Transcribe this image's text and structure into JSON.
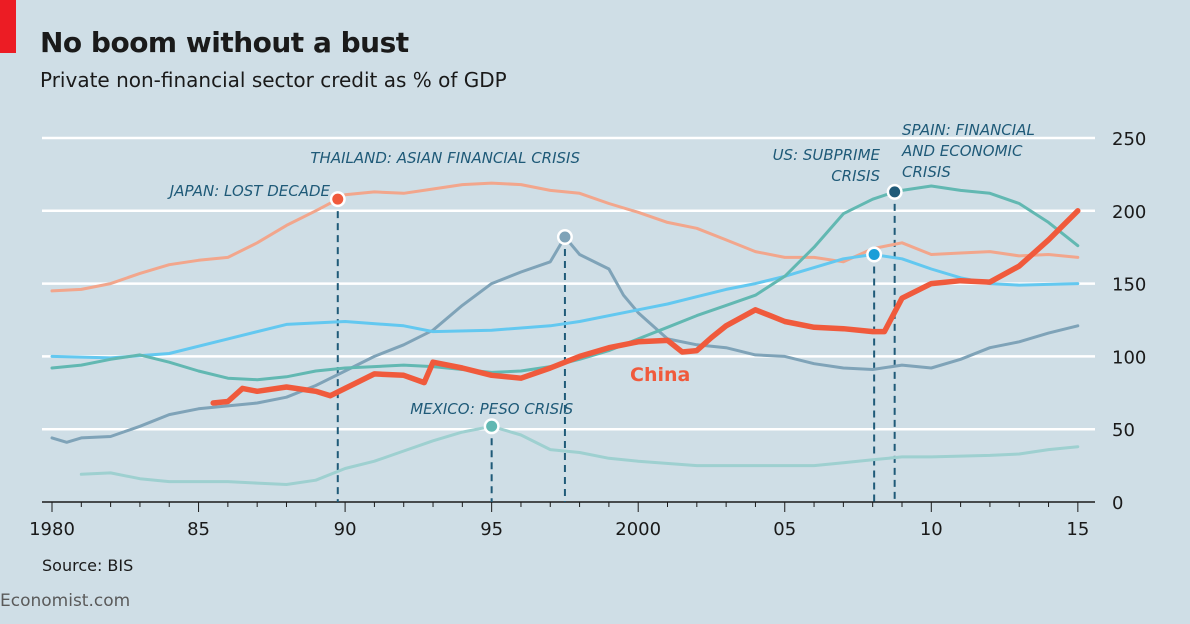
{
  "header": {
    "title": "No boom without a bust",
    "subtitle": "Private non-financial sector credit as % of GDP"
  },
  "source": "Source: BIS",
  "footer": "Economist.com",
  "chart_data": {
    "type": "line",
    "title": "No boom without a bust",
    "ylabel": "Private non-financial sector credit as % of GDP",
    "xlim": [
      1980,
      2015.5
    ],
    "ylim": [
      0,
      250
    ],
    "yticks": [
      0,
      50,
      100,
      150,
      200,
      250
    ],
    "xticks": [
      {
        "v": 1980,
        "label": "1980"
      },
      {
        "v": 1985,
        "label": "85"
      },
      {
        "v": 1990,
        "label": "90"
      },
      {
        "v": 1995,
        "label": "95"
      },
      {
        "v": 2000,
        "label": "2000"
      },
      {
        "v": 2005,
        "label": "05"
      },
      {
        "v": 2010,
        "label": "10"
      },
      {
        "v": 2015,
        "label": "15"
      }
    ],
    "grid": true,
    "series": [
      {
        "name": "Japan",
        "color": "#f2a68c",
        "width": 3,
        "points": [
          [
            1980,
            145
          ],
          [
            1981,
            146
          ],
          [
            1982,
            150
          ],
          [
            1983,
            157
          ],
          [
            1984,
            163
          ],
          [
            1985,
            166
          ],
          [
            1986,
            168
          ],
          [
            1987,
            178
          ],
          [
            1988,
            190
          ],
          [
            1989,
            200
          ],
          [
            1989.75,
            208
          ],
          [
            1990,
            211
          ],
          [
            1991,
            213
          ],
          [
            1992,
            212
          ],
          [
            1993,
            215
          ],
          [
            1994,
            218
          ],
          [
            1995,
            219
          ],
          [
            1996,
            218
          ],
          [
            1997,
            214
          ],
          [
            1998,
            212
          ],
          [
            1999,
            205
          ],
          [
            2000,
            199
          ],
          [
            2001,
            192
          ],
          [
            2002,
            188
          ],
          [
            2003,
            180
          ],
          [
            2004,
            172
          ],
          [
            2005,
            168
          ],
          [
            2006,
            168
          ],
          [
            2007,
            165
          ],
          [
            2008,
            174
          ],
          [
            2009,
            178
          ],
          [
            2010,
            170
          ],
          [
            2011,
            171
          ],
          [
            2012,
            172
          ],
          [
            2013,
            169
          ],
          [
            2014,
            170
          ],
          [
            2015,
            168
          ]
        ]
      },
      {
        "name": "Thailand",
        "color": "#7fa3b8",
        "width": 3,
        "points": [
          [
            1980,
            44
          ],
          [
            1980.5,
            41
          ],
          [
            1981,
            44
          ],
          [
            1982,
            45
          ],
          [
            1983,
            52
          ],
          [
            1984,
            60
          ],
          [
            1985,
            64
          ],
          [
            1986,
            66
          ],
          [
            1987,
            68
          ],
          [
            1988,
            72
          ],
          [
            1989,
            80
          ],
          [
            1990,
            90
          ],
          [
            1991,
            100
          ],
          [
            1992,
            108
          ],
          [
            1993,
            118
          ],
          [
            1994,
            135
          ],
          [
            1995,
            150
          ],
          [
            1996,
            158
          ],
          [
            1997,
            165
          ],
          [
            1997.5,
            182
          ],
          [
            1998,
            170
          ],
          [
            1999,
            160
          ],
          [
            1999.5,
            142
          ],
          [
            2000,
            130
          ],
          [
            2001,
            112
          ],
          [
            2002,
            108
          ],
          [
            2003,
            106
          ],
          [
            2004,
            101
          ],
          [
            2005,
            100
          ],
          [
            2006,
            95
          ],
          [
            2007,
            92
          ],
          [
            2008,
            91
          ],
          [
            2009,
            94
          ],
          [
            2010,
            92
          ],
          [
            2011,
            98
          ],
          [
            2012,
            106
          ],
          [
            2013,
            110
          ],
          [
            2014,
            116
          ],
          [
            2015,
            121
          ]
        ]
      },
      {
        "name": "United States",
        "color": "#63c8f0",
        "width": 3,
        "points": [
          [
            1980,
            100
          ],
          [
            1982,
            99
          ],
          [
            1984,
            102
          ],
          [
            1986,
            112
          ],
          [
            1988,
            122
          ],
          [
            1990,
            124
          ],
          [
            1992,
            121
          ],
          [
            1993,
            117
          ],
          [
            1995,
            118
          ],
          [
            1997,
            121
          ],
          [
            1998,
            124
          ],
          [
            2000,
            132
          ],
          [
            2001,
            136
          ],
          [
            2002,
            141
          ],
          [
            2003,
            146
          ],
          [
            2004,
            150
          ],
          [
            2005,
            155
          ],
          [
            2006,
            161
          ],
          [
            2007,
            167
          ],
          [
            2008,
            170
          ],
          [
            2009,
            167
          ],
          [
            2010,
            160
          ],
          [
            2011,
            154
          ],
          [
            2012,
            150
          ],
          [
            2013,
            149
          ],
          [
            2015,
            150
          ]
        ]
      },
      {
        "name": "Spain",
        "color": "#62b8b2",
        "width": 3,
        "points": [
          [
            1980,
            92
          ],
          [
            1981,
            94
          ],
          [
            1982,
            98
          ],
          [
            1983,
            101
          ],
          [
            1984,
            96
          ],
          [
            1985,
            90
          ],
          [
            1986,
            85
          ],
          [
            1987,
            84
          ],
          [
            1988,
            86
          ],
          [
            1989,
            90
          ],
          [
            1990,
            92
          ],
          [
            1991,
            93
          ],
          [
            1992,
            94
          ],
          [
            1993,
            93
          ],
          [
            1994,
            91
          ],
          [
            1995,
            89
          ],
          [
            1996,
            90
          ],
          [
            1997,
            93
          ],
          [
            1998,
            98
          ],
          [
            1999,
            104
          ],
          [
            2000,
            112
          ],
          [
            2001,
            120
          ],
          [
            2002,
            128
          ],
          [
            2003,
            135
          ],
          [
            2004,
            142
          ],
          [
            2005,
            155
          ],
          [
            2006,
            175
          ],
          [
            2007,
            198
          ],
          [
            2008,
            208
          ],
          [
            2008.75,
            213
          ],
          [
            2009,
            214
          ],
          [
            2010,
            217
          ],
          [
            2011,
            214
          ],
          [
            2012,
            212
          ],
          [
            2013,
            205
          ],
          [
            2014,
            192
          ],
          [
            2015,
            176
          ]
        ]
      },
      {
        "name": "Mexico",
        "color": "#9ed0d0",
        "width": 3,
        "points": [
          [
            1981,
            19
          ],
          [
            1982,
            20
          ],
          [
            1983,
            16
          ],
          [
            1984,
            14
          ],
          [
            1985,
            14
          ],
          [
            1986,
            14
          ],
          [
            1987,
            13
          ],
          [
            1988,
            12
          ],
          [
            1989,
            15
          ],
          [
            1990,
            23
          ],
          [
            1991,
            28
          ],
          [
            1992,
            35
          ],
          [
            1993,
            42
          ],
          [
            1994,
            48
          ],
          [
            1995,
            52
          ],
          [
            1996,
            46
          ],
          [
            1997,
            36
          ],
          [
            1998,
            34
          ],
          [
            1999,
            30
          ],
          [
            2000,
            28
          ],
          [
            2002,
            25
          ],
          [
            2004,
            25
          ],
          [
            2006,
            25
          ],
          [
            2007,
            27
          ],
          [
            2008,
            29
          ],
          [
            2009,
            31
          ],
          [
            2010,
            31
          ],
          [
            2012,
            32
          ],
          [
            2013,
            33
          ],
          [
            2014,
            36
          ],
          [
            2015,
            38
          ]
        ]
      },
      {
        "name": "China",
        "label": "China",
        "color": "#f05a3c",
        "width": 5.5,
        "points": [
          [
            1985.5,
            68
          ],
          [
            1986,
            69
          ],
          [
            1986.5,
            78
          ],
          [
            1987,
            76
          ],
          [
            1988,
            79
          ],
          [
            1989,
            76
          ],
          [
            1989.5,
            73
          ],
          [
            1990,
            78
          ],
          [
            1991,
            88
          ],
          [
            1992,
            87
          ],
          [
            1992.7,
            82
          ],
          [
            1993,
            96
          ],
          [
            1994,
            92
          ],
          [
            1995,
            87
          ],
          [
            1996,
            85
          ],
          [
            1997,
            92
          ],
          [
            1998,
            100
          ],
          [
            1999,
            106
          ],
          [
            2000,
            110
          ],
          [
            2001,
            111
          ],
          [
            2001.5,
            103
          ],
          [
            2002,
            104
          ],
          [
            2002.5,
            113
          ],
          [
            2003,
            121
          ],
          [
            2004,
            132
          ],
          [
            2004.5,
            128
          ],
          [
            2005,
            124
          ],
          [
            2006,
            120
          ],
          [
            2007,
            119
          ],
          [
            2008,
            117
          ],
          [
            2008.4,
            117
          ],
          [
            2009,
            140
          ],
          [
            2010,
            150
          ],
          [
            2011,
            152
          ],
          [
            2012,
            151
          ],
          [
            2013,
            162
          ],
          [
            2014,
            180
          ],
          [
            2015,
            200
          ]
        ]
      }
    ],
    "annotations": [
      {
        "lines": [
          "JAPAN: LOST DECADE"
        ],
        "x": 1989.75,
        "y": 208,
        "dot": "#f05a3c",
        "align": "end"
      },
      {
        "lines": [
          "THAILAND: ASIAN FINANCIAL CRISIS"
        ],
        "x": 1997.5,
        "y": 182,
        "dot": "#7fa3b8",
        "align": "end"
      },
      {
        "lines": [
          "MEXICO: PESO CRISIS"
        ],
        "x": 1995,
        "y": 52,
        "dot": "#62b8b2",
        "align": "middle"
      },
      {
        "lines": [
          "US: SUBPRIME",
          "CRISIS"
        ],
        "x": 2008.05,
        "y": 170,
        "dot": "#1a9ed8",
        "align": "end"
      },
      {
        "lines": [
          "SPAIN: FINANCIAL",
          "AND ECONOMIC",
          "CRISIS"
        ],
        "x": 2008.75,
        "y": 213,
        "dot": "#1f5a78",
        "align": "start"
      }
    ]
  }
}
